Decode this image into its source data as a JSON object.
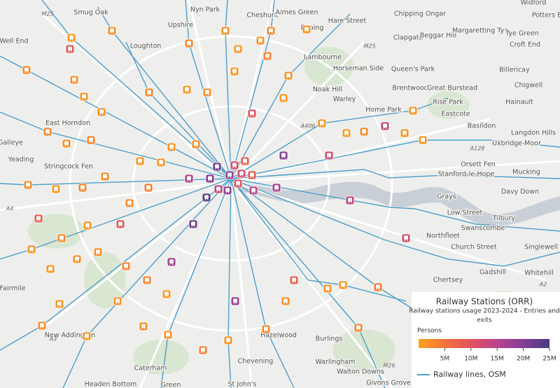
{
  "map": {
    "places": [
      "Smug Oak",
      "Nyn Park",
      "Cheshunt",
      "Aimes Green",
      "Chipping Ongar",
      "Widford",
      "Potters Bar",
      "Upshire",
      "Epping",
      "Hare Street",
      "Clapgate",
      "Beggar Hill",
      "Margaretting Tye",
      "Tye Green",
      "Croft End",
      "Well End",
      "Loughton",
      "Lambourne",
      "Horseman Side",
      "Queen's Park",
      "Billericay",
      "Chigwell",
      "Noak Hill",
      "Brentwood",
      "Great Burstead",
      "Hainault",
      "Warley",
      "Rise Park",
      "Home Park",
      "Eastcote",
      "East Horndon",
      "Basildon",
      "Langdon Hills",
      "Uxbridge Moor",
      "Yeading",
      "Stringcock Fen",
      "Orsett Fen",
      "Stanford-le-Hope",
      "Mucking",
      "Davy Down",
      "Grays",
      "Low Street",
      "Tilbury",
      "Swanscombe",
      "Northfleet",
      "Church Street",
      "Singlewell",
      "Gadshill",
      "Whitehill",
      "Chertsey",
      "Fairmile",
      "New Addington",
      "Hazelwood",
      "Burlings",
      "Warlingham",
      "Chevening",
      "Walton Downs",
      "Caterham",
      "St John's",
      "Givons Grove",
      "Headen Bottom",
      "Green",
      "Galleye"
    ],
    "roads": [
      "M25",
      "M25",
      "A406",
      "A4",
      "A3",
      "M26",
      "A2",
      "A128"
    ],
    "legend": {
      "title": "Railway Stations (ORR)",
      "subtitle_lines": [
        "Railway stations usage 2023-2024 - Entries and",
        "exits"
      ],
      "colorbar_title": "Persons",
      "range": [
        0,
        25000000
      ],
      "colors": [
        "#fba11b",
        "#f6743d",
        "#e2525f",
        "#b9448c",
        "#823f95",
        "#4a3a83"
      ],
      "ticks": [
        {
          "value": 5000000,
          "label": "5M"
        },
        {
          "value": 10000000,
          "label": "10M"
        },
        {
          "value": 15000000,
          "label": "15M"
        },
        {
          "value": 20000000,
          "label": "20M"
        },
        {
          "value": 25000000,
          "label": "25M"
        }
      ],
      "line_label": "Railway lines, OSM",
      "line_color": "#4f9ec9"
    },
    "stations": [
      22000000,
      18000000,
      12000000,
      20000000,
      16000000,
      24000000,
      14000000,
      10000000,
      9000000,
      8000000,
      11000000,
      19000000,
      15000000,
      17000000,
      21000000,
      20000000,
      18000000,
      16000000,
      14000000,
      13000000,
      12000000,
      12000000,
      9000000,
      8000000,
      9000000,
      8000000,
      10000000,
      2100000,
      1500000,
      2400000,
      3000000,
      1800000,
      2600000,
      1200000,
      1400000,
      900000,
      2200000,
      1700000,
      1600000,
      2800000,
      1300000,
      2000000,
      1100000,
      3400000,
      1900000,
      1000000,
      1500000,
      800000,
      2300000,
      1200000,
      1400000,
      1600000,
      2700000,
      1800000,
      2900000,
      2500000,
      1100000,
      3200000,
      2400000,
      1300000,
      1700000,
      1500000,
      2000000,
      3600000,
      2100000,
      1400000,
      2600000,
      1600000,
      1200000,
      1900000,
      2300000,
      2800000,
      3100000,
      1000000,
      1300000,
      2200000,
      1500000,
      1800000,
      2500000,
      1700000,
      3800000,
      1600000,
      2900000,
      2000000,
      1400000,
      1100000,
      4200000,
      3300000
    ]
  }
}
